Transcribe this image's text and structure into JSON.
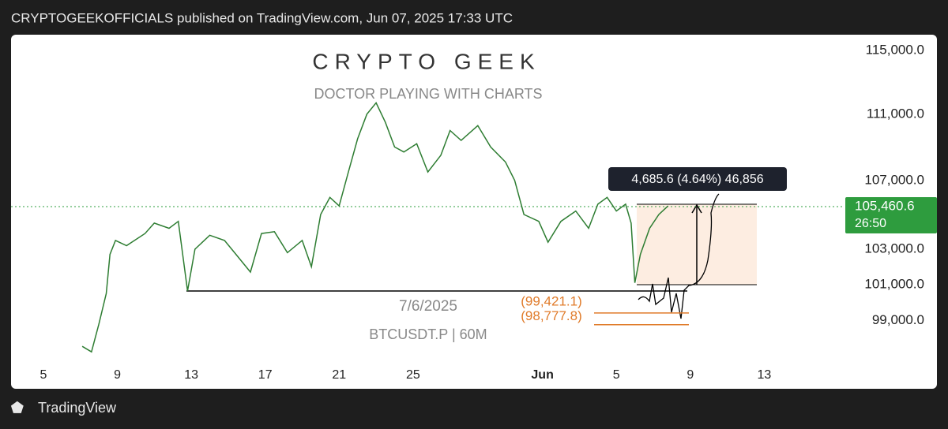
{
  "header": "CRYPTOGEEKOFFICIALS published on TradingView.com, Jun 07, 2025 17:33 UTC",
  "footer": "TradingView",
  "chart_data": {
    "type": "line",
    "title": "CRYPTO GEEK",
    "subtitle": "DOCTOR PLAYING WITH CHARTS",
    "annotations": [
      "7/6/2025",
      "BTCUSDT.P | 60M"
    ],
    "measure_label": "4,685.6 (4.64%) 46,856",
    "log_scale": true,
    "xlim": [
      3.25,
      48.3
    ],
    "xticks": [
      5,
      9,
      13,
      17,
      21,
      25,
      {
        "value": 32,
        "label": "Jun"
      },
      {
        "value": 36,
        "label": "5"
      },
      {
        "value": 40,
        "label": "9"
      },
      {
        "value": 44,
        "label": "13"
      }
    ],
    "ylim": [
      96800,
      116000
    ],
    "yticks": [
      {
        "value": 115000,
        "label": "115,000.0"
      },
      {
        "value": 111000,
        "label": "111,000.0"
      },
      {
        "value": 107000,
        "label": "107,000.0"
      },
      {
        "value": 103000,
        "label": "103,000.0"
      },
      {
        "value": 101000,
        "label": "101,000.0"
      },
      {
        "value": 99000,
        "label": "99,000.0"
      }
    ],
    "last_price": {
      "value": 105460.6,
      "label": "105,460.6"
    },
    "countdown": "26:50",
    "levels": [
      {
        "value": 99421.1,
        "label": "(99,421.1)"
      },
      {
        "value": 98777.8,
        "label": "(98,777.8)"
      }
    ],
    "series": [
      {
        "color": "#2e7d32",
        "x": [
          7.1,
          7.6,
          8.0,
          8.4,
          8.6,
          8.9,
          9.5,
          10.5,
          11.0,
          11.8,
          12.3,
          12.8,
          13.2,
          14.0,
          14.8,
          15.5,
          16.2,
          16.8,
          17.5,
          18.2,
          19.0,
          19.5,
          20.0,
          20.5,
          21.0,
          21.5,
          22.0,
          22.5,
          23.0,
          23.5,
          24.0,
          24.5,
          25.2,
          25.8,
          26.5,
          27.0,
          27.6,
          28.5,
          29.2,
          30.0,
          30.5,
          31.0,
          31.8,
          32.3,
          33.0,
          33.8,
          34.5,
          35.0,
          35.5,
          36.0,
          36.5,
          36.8,
          37.0,
          37.3,
          37.8,
          38.3,
          38.8
        ],
        "values": [
          97600,
          97300,
          98800,
          100500,
          102700,
          103500,
          103200,
          103900,
          104500,
          104200,
          104600,
          100640,
          103000,
          103800,
          103500,
          102600,
          101700,
          103900,
          104000,
          102800,
          103500,
          102000,
          105000,
          106000,
          105500,
          107500,
          109500,
          111000,
          111700,
          110500,
          109000,
          108700,
          109200,
          107500,
          108500,
          110000,
          109400,
          110300,
          109000,
          108100,
          107000,
          105000,
          104600,
          103400,
          104600,
          105200,
          104200,
          105600,
          106000,
          105200,
          105600,
          104500,
          101100,
          102700,
          104200,
          105000,
          105500
        ]
      }
    ]
  }
}
